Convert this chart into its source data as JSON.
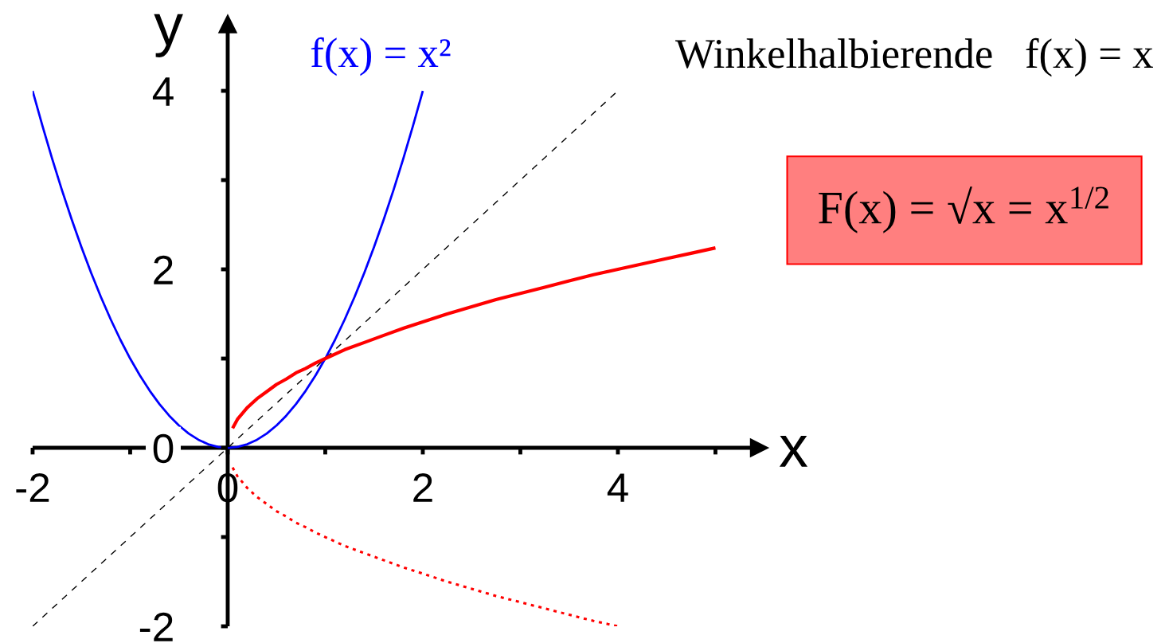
{
  "chart_data": {
    "type": "line",
    "xlabel": "x",
    "ylabel": "y",
    "xlim": [
      -2,
      5.45
    ],
    "ylim": [
      -2,
      4.75
    ],
    "xticks": [
      -2,
      {
        "value": -1,
        "label": null
      },
      0,
      {
        "value": 1,
        "label": null
      },
      2,
      {
        "value": 3,
        "label": null
      },
      4,
      {
        "value": 5,
        "label": null
      }
    ],
    "yticks": [
      -2,
      {
        "value": -1,
        "label": null
      },
      0,
      {
        "value": 1,
        "label": null
      },
      2,
      {
        "value": 3,
        "label": null
      },
      4
    ],
    "grid": false,
    "marker": "none",
    "series": [
      {
        "name": "f(x) = x²",
        "color": "#0000ff",
        "line_style": "solid",
        "x": [
          -2,
          -1.9,
          -1.8,
          -1.7,
          -1.6,
          -1.5,
          -1.4,
          -1.3,
          -1.2,
          -1.1,
          -1,
          -0.9,
          -0.8,
          -0.7,
          -0.6,
          -0.5,
          -0.4,
          -0.3,
          -0.2,
          -0.1,
          0,
          0.1,
          0.2,
          0.3,
          0.4,
          0.5,
          0.6,
          0.7,
          0.8,
          0.9,
          1,
          1.1,
          1.2,
          1.3,
          1.4,
          1.5,
          1.6,
          1.7,
          1.8,
          1.9,
          2
        ],
        "values": [
          4,
          3.61,
          3.24,
          2.89,
          2.56,
          2.25,
          1.96,
          1.69,
          1.44,
          1.21,
          1,
          0.81,
          0.64,
          0.49,
          0.36,
          0.25,
          0.16,
          0.09,
          0.04,
          0.01,
          0,
          0.01,
          0.04,
          0.09,
          0.16,
          0.25,
          0.36,
          0.49,
          0.64,
          0.81,
          1,
          1.21,
          1.44,
          1.69,
          1.96,
          2.25,
          2.56,
          2.89,
          3.24,
          3.61,
          4
        ]
      },
      {
        "name": "Winkelhalbierende   f(x) = x",
        "color": "#000000",
        "line_style": "dashed",
        "x": [
          -2,
          4
        ],
        "values": [
          -2,
          4
        ]
      },
      {
        "name": "F(x) = √x = x$^{1/2}$",
        "color": "#ff0000",
        "line_style": "solid",
        "x": [
          0.05,
          0.1,
          0.2,
          0.3,
          0.4,
          0.5,
          0.6,
          0.7,
          0.8,
          0.9,
          1,
          1.2,
          1.4,
          1.6,
          1.8,
          2,
          2.25,
          2.5,
          2.75,
          3,
          3.25,
          3.5,
          3.75,
          4,
          4.25,
          4.5,
          4.75,
          5
        ],
        "values": [
          0.22,
          0.32,
          0.45,
          0.55,
          0.63,
          0.71,
          0.77,
          0.84,
          0.89,
          0.95,
          1,
          1.1,
          1.18,
          1.26,
          1.34,
          1.41,
          1.5,
          1.58,
          1.66,
          1.73,
          1.8,
          1.87,
          1.94,
          2,
          2.06,
          2.12,
          2.18,
          2.24
        ]
      },
      {
        "color": "#ff0000",
        "line_style": "dotted",
        "x": [
          0.05,
          0.1,
          0.2,
          0.3,
          0.4,
          0.5,
          0.6,
          0.7,
          0.8,
          0.9,
          1,
          1.2,
          1.4,
          1.6,
          1.8,
          2,
          2.25,
          2.5,
          2.75,
          3,
          3.25,
          3.5,
          3.75,
          4
        ],
        "values": [
          -0.22,
          -0.32,
          -0.45,
          -0.55,
          -0.63,
          -0.71,
          -0.77,
          -0.84,
          -0.89,
          -0.95,
          -1,
          -1.1,
          -1.18,
          -1.26,
          -1.34,
          -1.41,
          -1.5,
          -1.58,
          -1.66,
          -1.73,
          -1.8,
          -1.87,
          -1.94,
          -2
        ]
      }
    ]
  }
}
